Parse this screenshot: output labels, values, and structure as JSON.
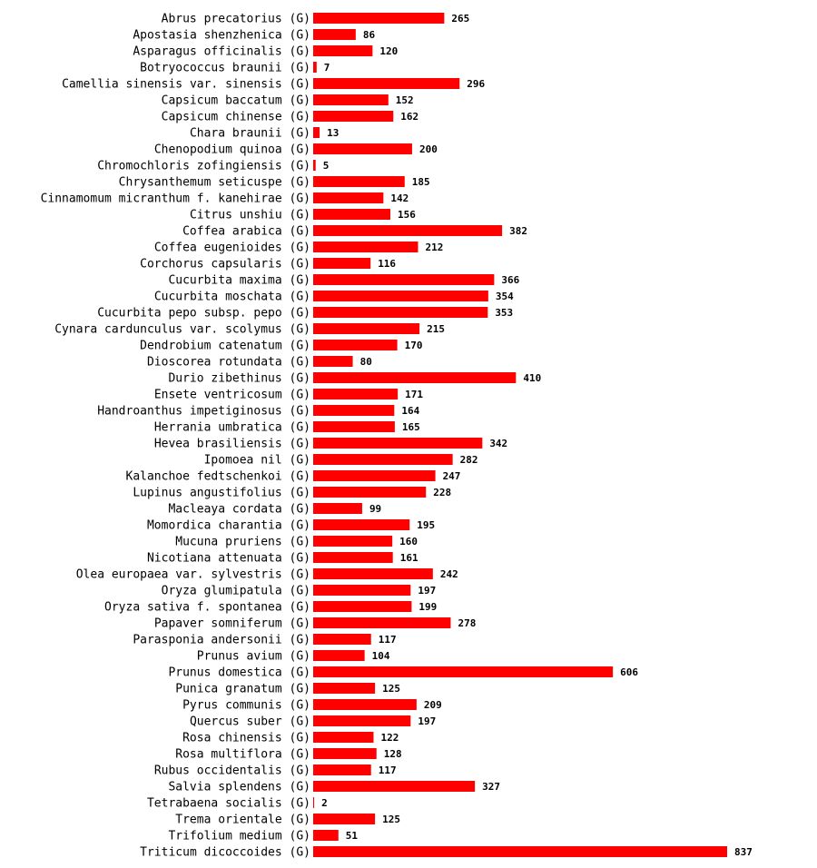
{
  "chart_data": {
    "type": "bar",
    "orientation": "horizontal",
    "title": "",
    "xlabel": "",
    "ylabel": "",
    "xlim": [
      0,
      837
    ],
    "bar_color": "#ff0000",
    "categories": [
      "Abrus precatorius (G)",
      "Apostasia shenzhenica (G)",
      "Asparagus officinalis (G)",
      "Botryococcus braunii (G)",
      "Camellia sinensis var. sinensis (G)",
      "Capsicum baccatum (G)",
      "Capsicum chinense (G)",
      "Chara braunii (G)",
      "Chenopodium quinoa (G)",
      "Chromochloris zofingiensis (G)",
      "Chrysanthemum seticuspe (G)",
      "Cinnamomum micranthum f. kanehirae (G)",
      "Citrus unshiu (G)",
      "Coffea arabica (G)",
      "Coffea eugenioides (G)",
      "Corchorus capsularis (G)",
      "Cucurbita maxima (G)",
      "Cucurbita moschata (G)",
      "Cucurbita pepo subsp. pepo (G)",
      "Cynara cardunculus var. scolymus (G)",
      "Dendrobium catenatum (G)",
      "Dioscorea rotundata (G)",
      "Durio zibethinus (G)",
      "Ensete ventricosum (G)",
      "Handroanthus impetiginosus (G)",
      "Herrania umbratica (G)",
      "Hevea brasiliensis (G)",
      "Ipomoea nil (G)",
      "Kalanchoe fedtschenkoi (G)",
      "Lupinus angustifolius (G)",
      "Macleaya cordata (G)",
      "Momordica charantia (G)",
      "Mucuna pruriens (G)",
      "Nicotiana attenuata (G)",
      "Olea europaea var. sylvestris (G)",
      "Oryza glumipatula (G)",
      "Oryza sativa f. spontanea (G)",
      "Papaver somniferum (G)",
      "Parasponia andersonii (G)",
      "Prunus avium (G)",
      "Prunus domestica (G)",
      "Punica granatum (G)",
      "Pyrus communis (G)",
      "Quercus suber (G)",
      "Rosa chinensis (G)",
      "Rosa multiflora (G)",
      "Rubus occidentalis (G)",
      "Salvia splendens (G)",
      "Tetrabaena socialis (G)",
      "Trema orientale (G)",
      "Trifolium medium (G)",
      "Triticum dicoccoides (G)"
    ],
    "values": [
      265,
      86,
      120,
      7,
      296,
      152,
      162,
      13,
      200,
      5,
      185,
      142,
      156,
      382,
      212,
      116,
      366,
      354,
      353,
      215,
      170,
      80,
      410,
      171,
      164,
      165,
      342,
      282,
      247,
      228,
      99,
      195,
      160,
      161,
      242,
      197,
      199,
      278,
      117,
      104,
      606,
      125,
      209,
      197,
      122,
      128,
      117,
      327,
      2,
      125,
      51,
      837
    ]
  }
}
